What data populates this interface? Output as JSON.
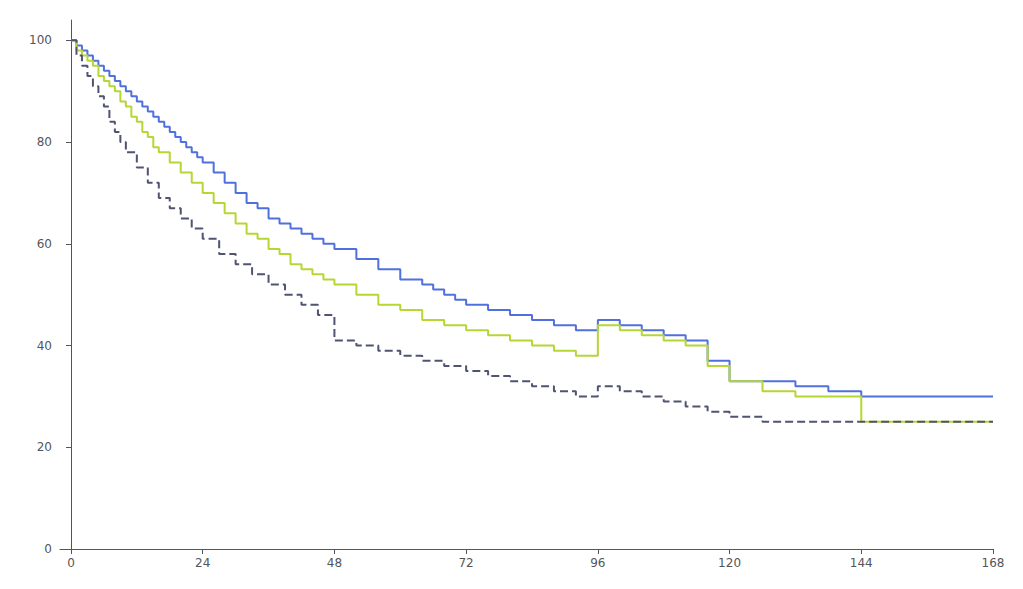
{
  "chart_data": {
    "type": "step",
    "xlim": [
      -2,
      168
    ],
    "ylim": [
      0,
      104
    ],
    "xticks": [
      0,
      24,
      48,
      72,
      96,
      120,
      144,
      168
    ],
    "yticks": [
      0,
      20,
      40,
      60,
      80,
      100
    ],
    "grid": false,
    "series": [
      {
        "line_style": "solid",
        "x": [
          0,
          1,
          2,
          3,
          4,
          5,
          6,
          7,
          8,
          9,
          10,
          11,
          12,
          13,
          14,
          15,
          16,
          17,
          18,
          19,
          20,
          21,
          22,
          23,
          24,
          26,
          28,
          30,
          32,
          34,
          36,
          38,
          40,
          42,
          44,
          46,
          48,
          52,
          56,
          60,
          64,
          66,
          68,
          70,
          72,
          76,
          80,
          84,
          88,
          92,
          96,
          100,
          104,
          108,
          112,
          116,
          120,
          126,
          132,
          138,
          144,
          150,
          156,
          162,
          168
        ],
        "values": [
          100,
          99,
          98,
          97,
          96,
          95,
          94,
          93,
          92,
          91,
          90,
          89,
          88,
          87,
          86,
          85,
          84,
          83,
          82,
          81,
          80,
          79,
          78,
          77,
          76,
          74,
          72,
          70,
          68,
          67,
          65,
          64,
          63,
          62,
          61,
          60,
          59,
          57,
          55,
          53,
          52,
          51,
          50,
          49,
          48,
          47,
          46,
          45,
          44,
          43,
          45,
          44,
          43,
          42,
          41,
          37,
          33,
          33,
          32,
          31,
          30,
          30,
          30,
          30,
          30
        ]
      },
      {
        "line_style": "solid",
        "x": [
          0,
          1,
          2,
          3,
          4,
          5,
          6,
          7,
          8,
          9,
          10,
          11,
          12,
          13,
          14,
          15,
          16,
          18,
          20,
          22,
          24,
          26,
          28,
          30,
          32,
          34,
          36,
          38,
          40,
          42,
          44,
          46,
          48,
          52,
          56,
          60,
          64,
          68,
          72,
          76,
          80,
          84,
          88,
          92,
          96,
          100,
          104,
          108,
          112,
          116,
          120,
          126,
          132,
          138,
          144,
          150,
          156,
          162,
          168
        ],
        "values": [
          100,
          98,
          97,
          96,
          95,
          93,
          92,
          91,
          90,
          88,
          87,
          85,
          84,
          82,
          81,
          79,
          78,
          76,
          74,
          72,
          70,
          68,
          66,
          64,
          62,
          61,
          59,
          58,
          56,
          55,
          54,
          53,
          52,
          50,
          48,
          47,
          45,
          44,
          43,
          42,
          41,
          40,
          39,
          38,
          44,
          43,
          42,
          41,
          40,
          36,
          33,
          31,
          30,
          30,
          25,
          25,
          25,
          25,
          25
        ]
      },
      {
        "line_style": "dashed",
        "x": [
          0,
          1,
          2,
          3,
          4,
          5,
          6,
          7,
          8,
          9,
          10,
          12,
          14,
          16,
          18,
          20,
          22,
          24,
          27,
          30,
          33,
          36,
          39,
          42,
          45,
          48,
          52,
          56,
          60,
          64,
          68,
          72,
          76,
          80,
          84,
          88,
          92,
          96,
          100,
          104,
          108,
          112,
          116,
          120,
          126,
          132,
          138,
          144,
          150,
          156,
          162,
          168
        ],
        "values": [
          100,
          97,
          95,
          93,
          91,
          89,
          87,
          84,
          82,
          80,
          78,
          75,
          72,
          69,
          67,
          65,
          63,
          61,
          58,
          56,
          54,
          52,
          50,
          48,
          46,
          41,
          40,
          39,
          38,
          37,
          36,
          35,
          34,
          33,
          32,
          31,
          30,
          32,
          31,
          30,
          29,
          28,
          27,
          26,
          25,
          25,
          25,
          25,
          25,
          25,
          25,
          25
        ]
      }
    ]
  }
}
